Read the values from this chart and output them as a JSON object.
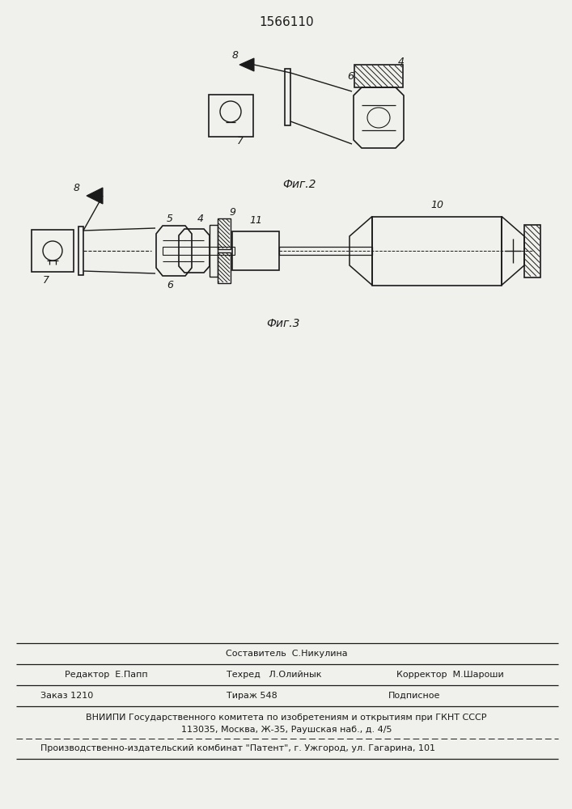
{
  "title": "1566110",
  "fig2_label": "Фиг.2",
  "fig3_label": "Фиг.3",
  "bg_color": "#f0f0ec",
  "line_color": "#1a1a1a",
  "footer": {
    "sostavitel": "Составитель  С.Никулина",
    "redaktor": "Редактор  Е.Папп",
    "tehred": "Техред   Л.Олийнык",
    "korrektor": "Корректор  М.Шароши",
    "zakaz": "Заказ 1210",
    "tirazh": "Тираж 548",
    "podpisnoe": "Подписное",
    "vniipи_line1": "ВНИИПИ Государственного комитета по изобретениям и открытиям при ГКНТ СССР",
    "vniipи_line2": "113035, Москва, Ж-35, Раушская наб., д. 4/5",
    "kombinat": "Производственно-издательский комбинат \"Патент\", г. Ужгород, ул. Гагарина, 101"
  }
}
